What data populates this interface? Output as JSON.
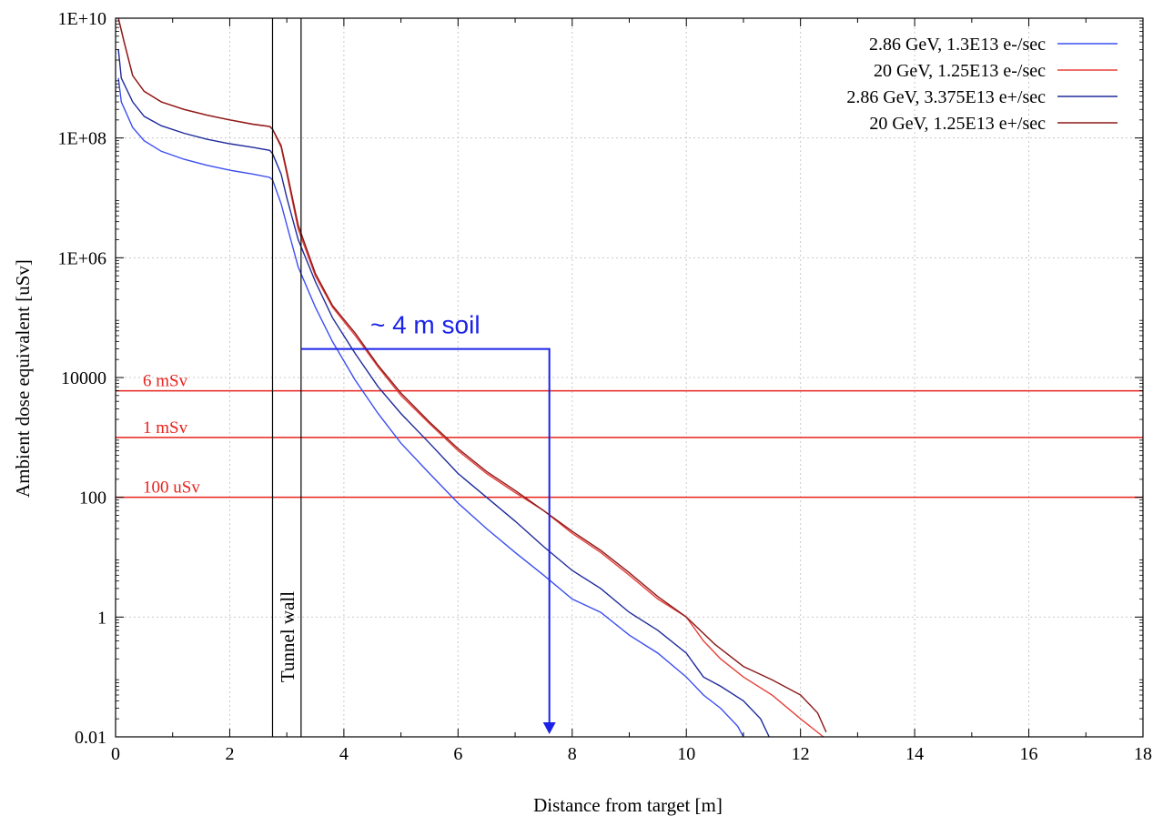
{
  "chart_data": {
    "type": "line",
    "title": "",
    "xlabel": "Distance from target [m]",
    "ylabel": "Ambient dose equivalent [uSv]",
    "xlim": [
      0,
      18
    ],
    "ylim": [
      0.01,
      10000000000
    ],
    "yscale": "log",
    "grid": true,
    "legend_position": "top-right",
    "x_ticks": [
      0,
      2,
      4,
      6,
      8,
      10,
      12,
      14,
      16,
      18
    ],
    "x_tick_labels": [
      "0",
      "2",
      "4",
      "6",
      "8",
      "10",
      "12",
      "14",
      "16",
      "18"
    ],
    "y_ticks": [
      0.01,
      1,
      100,
      10000,
      1000000,
      100000000,
      10000000000
    ],
    "y_tick_labels": [
      "0.01",
      "1",
      "100",
      "10000",
      "1E+06",
      "1E+08",
      "1E+10"
    ],
    "series": [
      {
        "name": "2.86 GeV, 1.3E13 e-/sec",
        "color": "#3b4ef0",
        "x": [
          0.05,
          0.1,
          0.3,
          0.5,
          0.8,
          1.2,
          1.6,
          2.0,
          2.4,
          2.7,
          2.75,
          2.9,
          3.0,
          3.2,
          3.5,
          3.8,
          4.2,
          4.6,
          5.0,
          5.5,
          6.0,
          6.5,
          7.0,
          7.5,
          8.0,
          8.5,
          9.0,
          9.5,
          10.0,
          10.3,
          10.6,
          10.9,
          11.0
        ],
        "y": [
          1000000000,
          400000000,
          150000000,
          90000000,
          60000000,
          44000000,
          35000000,
          29000000,
          25000000,
          22000000,
          20000000,
          8000000,
          3500000,
          700000,
          150000,
          40000,
          9000,
          2500,
          800,
          250,
          80,
          30,
          12,
          5,
          2,
          1.2,
          0.5,
          0.25,
          0.1,
          0.05,
          0.03,
          0.015,
          0.01
        ]
      },
      {
        "name": "20 GeV, 1.25E13 e-/sec",
        "color": "#e8403a",
        "x": [
          0.05,
          0.15,
          0.3,
          0.5,
          0.8,
          1.2,
          1.6,
          2.0,
          2.4,
          2.7,
          2.75,
          2.9,
          3.0,
          3.2,
          3.5,
          3.8,
          4.2,
          4.6,
          5.0,
          5.5,
          6.0,
          6.5,
          7.0,
          7.5,
          8.0,
          8.5,
          9.0,
          9.5,
          10.0,
          10.3,
          10.6,
          11.0,
          11.5,
          12.0,
          12.4
        ],
        "y": [
          10000000000,
          4000000000,
          1100000000,
          600000000,
          400000000,
          300000000,
          240000000,
          200000000,
          170000000,
          155000000,
          140000000,
          70000000,
          25000000,
          3000000,
          500000,
          150000,
          50000,
          15000,
          5000,
          1700,
          600,
          250,
          120,
          60,
          25,
          12,
          5,
          2,
          1,
          0.4,
          0.2,
          0.1,
          0.05,
          0.02,
          0.01
        ]
      },
      {
        "name": "2.86 GeV, 3.375E13 e+/sec",
        "color": "#1e2a9c",
        "x": [
          0.05,
          0.1,
          0.3,
          0.5,
          0.8,
          1.2,
          1.6,
          2.0,
          2.4,
          2.7,
          2.75,
          2.9,
          3.0,
          3.2,
          3.5,
          3.8,
          4.2,
          4.6,
          5.0,
          5.5,
          6.0,
          6.5,
          7.0,
          7.5,
          8.0,
          8.5,
          9.0,
          9.5,
          10.0,
          10.3,
          10.6,
          11.0,
          11.3,
          11.45
        ],
        "y": [
          3000000000,
          1000000000,
          400000000,
          230000000,
          160000000,
          120000000,
          95000000,
          80000000,
          70000000,
          62000000,
          55000000,
          25000000,
          10000000,
          2000000,
          400000,
          100000,
          25000,
          7000,
          2500,
          800,
          250,
          100,
          40,
          15,
          6,
          3,
          1.2,
          0.6,
          0.25,
          0.1,
          0.07,
          0.04,
          0.02,
          0.01
        ]
      },
      {
        "name": "20 GeV, 1.25E13 e+/sec",
        "color": "#8b1a1a",
        "x": [
          0.05,
          0.15,
          0.3,
          0.5,
          0.8,
          1.2,
          1.6,
          2.0,
          2.4,
          2.7,
          2.75,
          2.9,
          3.0,
          3.2,
          3.5,
          3.8,
          4.2,
          4.6,
          5.0,
          5.5,
          6.0,
          6.5,
          7.0,
          7.5,
          8.0,
          8.5,
          9.0,
          9.5,
          10.0,
          10.5,
          11.0,
          11.5,
          12.0,
          12.3,
          12.45
        ],
        "y": [
          10000000000,
          4000000000,
          1100000000,
          600000000,
          400000000,
          300000000,
          240000000,
          200000000,
          170000000,
          155000000,
          140000000,
          75000000,
          28000000,
          3500000,
          550000,
          160000,
          55000,
          16000,
          5500,
          1800,
          650,
          270,
          130,
          60,
          27,
          13,
          5.5,
          2.2,
          1,
          0.35,
          0.15,
          0.09,
          0.05,
          0.025,
          0.012
        ]
      }
    ],
    "reference_lines": [
      {
        "label": "6 mSv",
        "y": 6000,
        "color": "#e8221c"
      },
      {
        "label": "1 mSv",
        "y": 1000,
        "color": "#e8221c"
      },
      {
        "label": "100 uSv",
        "y": 100,
        "color": "#e8221c"
      }
    ],
    "vertical_lines": [
      {
        "x": 2.75,
        "color": "#000000"
      },
      {
        "x": 3.25,
        "color": "#000000"
      }
    ],
    "annotations": {
      "tunnel_wall": "Tunnel wall",
      "soil": "~ 4 m soil",
      "soil_arrow": {
        "x_start": 3.25,
        "x_end": 7.6,
        "y": 30000,
        "color": "#1a22e8"
      }
    }
  }
}
